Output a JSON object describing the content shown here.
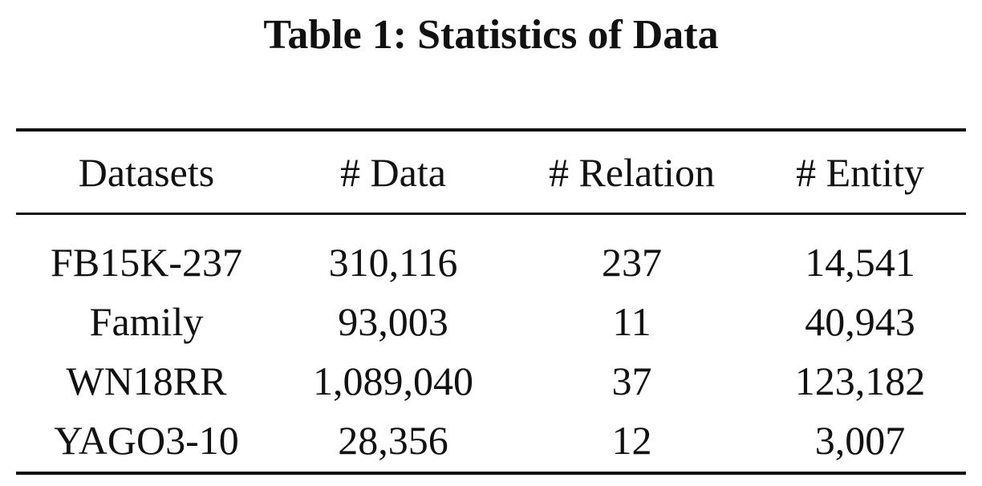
{
  "caption": "Table 1: Statistics of Data",
  "table": {
    "headers": [
      "Datasets",
      "# Data",
      "# Relation",
      "# Entity"
    ],
    "rows": [
      [
        "FB15K-237",
        "310,116",
        "237",
        "14,541"
      ],
      [
        "Family",
        "93,003",
        "11",
        "40,943"
      ],
      [
        "WN18RR",
        "1,089,040",
        "37",
        "123,182"
      ],
      [
        "YAGO3-10",
        "28,356",
        "12",
        "3,007"
      ]
    ]
  }
}
